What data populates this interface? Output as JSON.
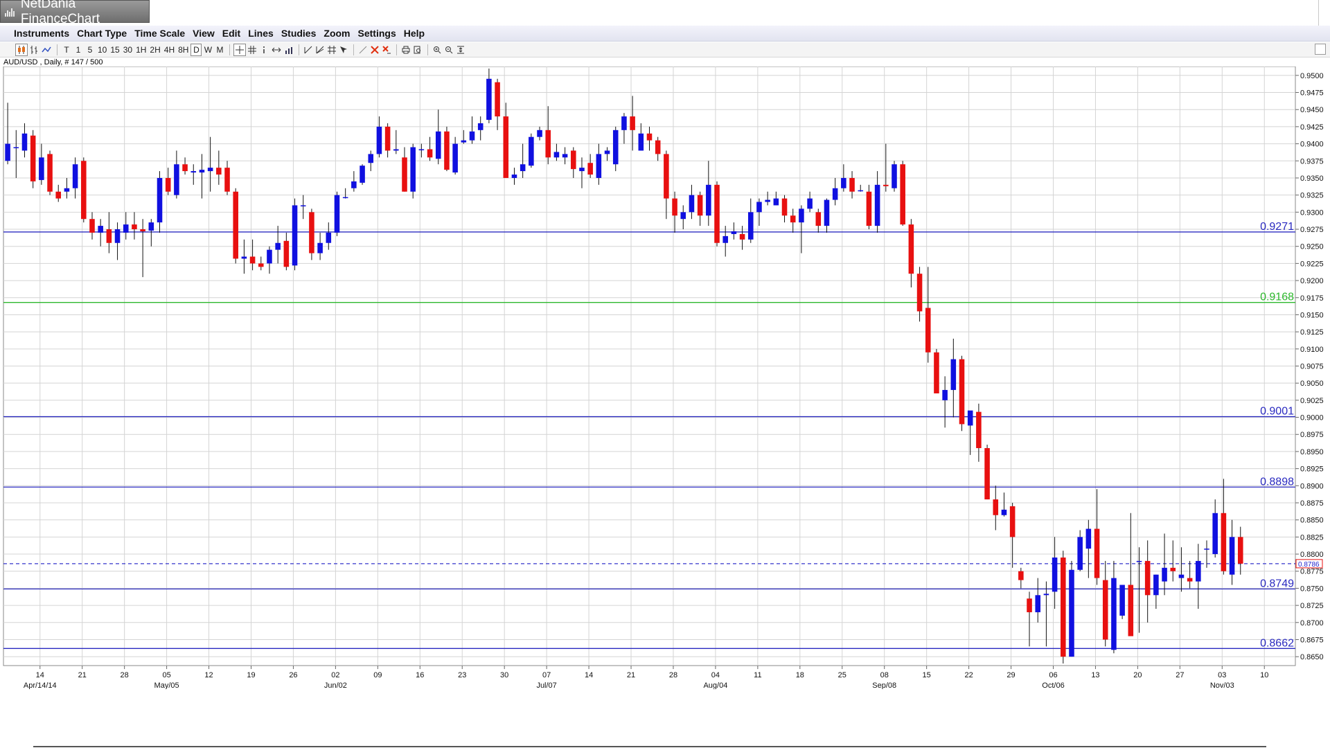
{
  "app": {
    "title": "NetDania FinanceChart",
    "icon": "chart-bars-icon"
  },
  "menu": [
    "Instruments",
    "Chart Type",
    "Time Scale",
    "View",
    "Edit",
    "Lines",
    "Studies",
    "Zoom",
    "Settings",
    "Help"
  ],
  "toolbar": {
    "chart_type_icons": [
      "candlestick-icon",
      "ohlc-bars-icon",
      "line-chart-icon"
    ],
    "timeframes": [
      "T",
      "1",
      "5",
      "10",
      "15",
      "30",
      "1H",
      "2H",
      "4H",
      "8H",
      "D",
      "W",
      "M"
    ],
    "active_timeframe": "D",
    "tool_icons": [
      "crosshair-icon",
      "grid-icon",
      "info-icon",
      "pan-icon",
      "volume-icon",
      "trendline-icon",
      "fan-icon",
      "fibonacci-icon",
      "cursor-arrow-icon",
      "draw-line-icon",
      "delete-icon",
      "delete-all-icon",
      "print-icon",
      "print-preview-icon",
      "zoom-in-icon",
      "zoom-out-icon",
      "fit-icon"
    ]
  },
  "instrument_info": "AUD/USD , Daily, # 147 / 500",
  "colors": {
    "up": "#1010e0",
    "down": "#e81010",
    "hline_blue": "#2a2ac0",
    "hline_green": "#2db82d",
    "grid": "#d4d4d4",
    "last_price": "#e81010"
  },
  "chart_data": {
    "type": "candlestick",
    "instrument": "AUD/USD",
    "ylim": [
      0.8637,
      0.9513
    ],
    "y_ticks": [
      "0.9500",
      "0.9475",
      "0.9450",
      "0.9425",
      "0.9400",
      "0.9375",
      "0.9350",
      "0.9325",
      "0.9300",
      "0.9275",
      "0.9250",
      "0.9225",
      "0.9200",
      "0.9175",
      "0.9150",
      "0.9125",
      "0.9100",
      "0.9075",
      "0.9050",
      "0.9025",
      "0.9000",
      "0.8975",
      "0.8950",
      "0.8925",
      "0.8900",
      "0.8875",
      "0.8850",
      "0.8825",
      "0.8800",
      "0.8775",
      "0.8750",
      "0.8725",
      "0.8700",
      "0.8675",
      "0.8650"
    ],
    "x_ticks_top": [
      "14",
      "21",
      "28",
      "05",
      "12",
      "19",
      "26",
      "02",
      "09",
      "16",
      "23",
      "30",
      "07",
      "14",
      "21",
      "28",
      "04",
      "11",
      "18",
      "25",
      "08",
      "15",
      "22",
      "29",
      "06",
      "13",
      "20",
      "27",
      "03",
      "10"
    ],
    "x_ticks_bottom": [
      "Apr/14/14",
      "May/05",
      "Jun/02",
      "Jul/07",
      "Aug/04",
      "Sep/08",
      "Oct/06",
      "Nov/03"
    ],
    "h_lines": [
      {
        "value": 0.9271,
        "label": "0.9271",
        "color": "blue"
      },
      {
        "value": 0.9168,
        "label": "0.9168",
        "color": "green"
      },
      {
        "value": 0.9001,
        "label": "0.9001",
        "color": "blue"
      },
      {
        "value": 0.8898,
        "label": "0.8898",
        "color": "blue"
      },
      {
        "value": 0.8749,
        "label": "0.8749",
        "color": "blue"
      },
      {
        "value": 0.8662,
        "label": "0.8662",
        "color": "blue"
      }
    ],
    "last_price": 0.8786,
    "last_price_label": "0.8786",
    "candles_ohlc": [
      [
        0.9375,
        0.946,
        0.937,
        0.94
      ],
      [
        0.9395,
        0.942,
        0.935,
        0.9395
      ],
      [
        0.939,
        0.943,
        0.938,
        0.9415
      ],
      [
        0.9412,
        0.942,
        0.9335,
        0.9345
      ],
      [
        0.9347,
        0.94,
        0.934,
        0.938
      ],
      [
        0.9385,
        0.939,
        0.9325,
        0.933
      ],
      [
        0.933,
        0.934,
        0.9315,
        0.932
      ],
      [
        0.933,
        0.935,
        0.932,
        0.9335
      ],
      [
        0.9335,
        0.938,
        0.932,
        0.937
      ],
      [
        0.9375,
        0.938,
        0.9285,
        0.929
      ],
      [
        0.929,
        0.93,
        0.926,
        0.927
      ],
      [
        0.927,
        0.929,
        0.925,
        0.928
      ],
      [
        0.9275,
        0.93,
        0.924,
        0.9255
      ],
      [
        0.9255,
        0.9285,
        0.923,
        0.9275
      ],
      [
        0.927,
        0.93,
        0.926,
        0.9282
      ],
      [
        0.9282,
        0.93,
        0.926,
        0.9275
      ],
      [
        0.9275,
        0.929,
        0.9205,
        0.9272
      ],
      [
        0.9273,
        0.929,
        0.925,
        0.9285
      ],
      [
        0.9285,
        0.936,
        0.927,
        0.935
      ],
      [
        0.935,
        0.9365,
        0.9325,
        0.933
      ],
      [
        0.9325,
        0.939,
        0.932,
        0.937
      ],
      [
        0.937,
        0.938,
        0.9355,
        0.936
      ],
      [
        0.9358,
        0.937,
        0.934,
        0.936
      ],
      [
        0.9358,
        0.9385,
        0.932,
        0.9362
      ],
      [
        0.936,
        0.941,
        0.933,
        0.9365
      ],
      [
        0.9365,
        0.939,
        0.934,
        0.9355
      ],
      [
        0.9365,
        0.9375,
        0.9325,
        0.933
      ],
      [
        0.933,
        0.9335,
        0.9225,
        0.9232
      ],
      [
        0.9232,
        0.926,
        0.921,
        0.9235
      ],
      [
        0.9235,
        0.926,
        0.9215,
        0.9225
      ],
      [
        0.9225,
        0.9235,
        0.9215,
        0.922
      ],
      [
        0.9225,
        0.925,
        0.921,
        0.9245
      ],
      [
        0.9245,
        0.928,
        0.9225,
        0.9255
      ],
      [
        0.9258,
        0.927,
        0.9215,
        0.922
      ],
      [
        0.9222,
        0.932,
        0.9215,
        0.931
      ],
      [
        0.931,
        0.9325,
        0.929,
        0.931
      ],
      [
        0.93,
        0.9305,
        0.923,
        0.924
      ],
      [
        0.924,
        0.927,
        0.923,
        0.9255
      ],
      [
        0.9255,
        0.9285,
        0.9245,
        0.927
      ],
      [
        0.927,
        0.933,
        0.9265,
        0.9325
      ],
      [
        0.9322,
        0.9335,
        0.932,
        0.9322
      ],
      [
        0.9335,
        0.936,
        0.933,
        0.9345
      ],
      [
        0.9343,
        0.937,
        0.934,
        0.9368
      ],
      [
        0.9372,
        0.939,
        0.936,
        0.9385
      ],
      [
        0.9385,
        0.944,
        0.938,
        0.9425
      ],
      [
        0.9425,
        0.943,
        0.938,
        0.939
      ],
      [
        0.939,
        0.942,
        0.9385,
        0.9392
      ],
      [
        0.938,
        0.9395,
        0.933,
        0.933
      ],
      [
        0.933,
        0.94,
        0.932,
        0.9395
      ],
      [
        0.9392,
        0.94,
        0.938,
        0.9392
      ],
      [
        0.9392,
        0.941,
        0.9375,
        0.938
      ],
      [
        0.9378,
        0.945,
        0.937,
        0.9418
      ],
      [
        0.9418,
        0.9425,
        0.936,
        0.9362
      ],
      [
        0.9358,
        0.941,
        0.9355,
        0.94
      ],
      [
        0.9402,
        0.942,
        0.94,
        0.9405
      ],
      [
        0.9405,
        0.944,
        0.94,
        0.9418
      ],
      [
        0.942,
        0.944,
        0.9405,
        0.943
      ],
      [
        0.9435,
        0.951,
        0.943,
        0.9495
      ],
      [
        0.949,
        0.9495,
        0.942,
        0.944
      ],
      [
        0.944,
        0.946,
        0.9355,
        0.935
      ],
      [
        0.935,
        0.9365,
        0.934,
        0.9355
      ],
      [
        0.936,
        0.94,
        0.935,
        0.937
      ],
      [
        0.9368,
        0.9415,
        0.9365,
        0.941
      ],
      [
        0.941,
        0.9425,
        0.9405,
        0.942
      ],
      [
        0.942,
        0.9455,
        0.937,
        0.938
      ],
      [
        0.938,
        0.94,
        0.9375,
        0.9388
      ],
      [
        0.938,
        0.9395,
        0.937,
        0.9385
      ],
      [
        0.939,
        0.9395,
        0.935,
        0.9363
      ],
      [
        0.936,
        0.938,
        0.9335,
        0.9365
      ],
      [
        0.9372,
        0.9385,
        0.935,
        0.9355
      ],
      [
        0.935,
        0.94,
        0.934,
        0.9385
      ],
      [
        0.9385,
        0.9395,
        0.9375,
        0.939
      ],
      [
        0.937,
        0.9425,
        0.936,
        0.942
      ],
      [
        0.942,
        0.9445,
        0.94,
        0.944
      ],
      [
        0.944,
        0.947,
        0.939,
        0.942
      ],
      [
        0.939,
        0.943,
        0.939,
        0.9415
      ],
      [
        0.9415,
        0.9425,
        0.939,
        0.9405
      ],
      [
        0.9405,
        0.941,
        0.9375,
        0.9385
      ],
      [
        0.9385,
        0.939,
        0.929,
        0.932
      ],
      [
        0.932,
        0.933,
        0.927,
        0.9295
      ],
      [
        0.929,
        0.931,
        0.9275,
        0.93
      ],
      [
        0.93,
        0.934,
        0.929,
        0.9325
      ],
      [
        0.9325,
        0.933,
        0.928,
        0.9295
      ],
      [
        0.9295,
        0.9375,
        0.928,
        0.934
      ],
      [
        0.934,
        0.9345,
        0.925,
        0.9255
      ],
      [
        0.9255,
        0.928,
        0.9235,
        0.9265
      ],
      [
        0.9268,
        0.9285,
        0.926,
        0.9272
      ],
      [
        0.9268,
        0.928,
        0.9245,
        0.926
      ],
      [
        0.926,
        0.932,
        0.9255,
        0.93
      ],
      [
        0.93,
        0.932,
        0.928,
        0.9315
      ],
      [
        0.9315,
        0.933,
        0.931,
        0.9318
      ],
      [
        0.931,
        0.933,
        0.931,
        0.932
      ],
      [
        0.932,
        0.9325,
        0.9285,
        0.9295
      ],
      [
        0.9295,
        0.9305,
        0.927,
        0.9285
      ],
      [
        0.9285,
        0.931,
        0.924,
        0.9305
      ],
      [
        0.9305,
        0.933,
        0.93,
        0.932
      ],
      [
        0.93,
        0.9305,
        0.927,
        0.928
      ],
      [
        0.928,
        0.932,
        0.927,
        0.9318
      ],
      [
        0.9318,
        0.935,
        0.931,
        0.9335
      ],
      [
        0.9335,
        0.937,
        0.933,
        0.935
      ],
      [
        0.935,
        0.936,
        0.932,
        0.933
      ],
      [
        0.9332,
        0.934,
        0.933,
        0.9332
      ],
      [
        0.933,
        0.934,
        0.9275,
        0.928
      ],
      [
        0.928,
        0.936,
        0.927,
        0.934
      ],
      [
        0.934,
        0.94,
        0.933,
        0.9338
      ],
      [
        0.9335,
        0.9375,
        0.933,
        0.937
      ],
      [
        0.937,
        0.9375,
        0.928,
        0.9282
      ],
      [
        0.9282,
        0.929,
        0.919,
        0.921
      ],
      [
        0.921,
        0.922,
        0.914,
        0.9155
      ],
      [
        0.916,
        0.922,
        0.908,
        0.9095
      ],
      [
        0.9095,
        0.91,
        0.9035,
        0.9035
      ],
      [
        0.9025,
        0.906,
        0.8985,
        0.904
      ],
      [
        0.904,
        0.9115,
        0.9,
        0.9085
      ],
      [
        0.9085,
        0.909,
        0.898,
        0.899
      ],
      [
        0.8988,
        0.9,
        0.8945,
        0.901
      ],
      [
        0.9008,
        0.902,
        0.8935,
        0.8955
      ],
      [
        0.8955,
        0.896,
        0.888,
        0.888
      ],
      [
        0.888,
        0.89,
        0.8835,
        0.8857
      ],
      [
        0.8857,
        0.889,
        0.8855,
        0.8865
      ],
      [
        0.887,
        0.8875,
        0.878,
        0.8825
      ],
      [
        0.8775,
        0.878,
        0.875,
        0.8762
      ],
      [
        0.8735,
        0.8745,
        0.8665,
        0.8715
      ],
      [
        0.8715,
        0.8765,
        0.87,
        0.874
      ],
      [
        0.874,
        0.876,
        0.8665,
        0.8742
      ],
      [
        0.8745,
        0.8825,
        0.872,
        0.8795
      ],
      [
        0.8795,
        0.8805,
        0.864,
        0.865
      ],
      [
        0.865,
        0.879,
        0.865,
        0.8777
      ],
      [
        0.8777,
        0.8835,
        0.8775,
        0.8825
      ],
      [
        0.8808,
        0.885,
        0.8765,
        0.8837
      ],
      [
        0.8837,
        0.8895,
        0.8755,
        0.8765
      ],
      [
        0.8762,
        0.879,
        0.8665,
        0.8675
      ],
      [
        0.866,
        0.879,
        0.8655,
        0.8765
      ],
      [
        0.871,
        0.8755,
        0.8705,
        0.8755
      ],
      [
        0.8755,
        0.886,
        0.869,
        0.868
      ],
      [
        0.879,
        0.881,
        0.8685,
        0.879
      ],
      [
        0.879,
        0.882,
        0.87,
        0.874
      ],
      [
        0.874,
        0.877,
        0.872,
        0.877
      ],
      [
        0.876,
        0.883,
        0.874,
        0.878
      ],
      [
        0.878,
        0.882,
        0.876,
        0.8775
      ],
      [
        0.8765,
        0.881,
        0.8745,
        0.877
      ],
      [
        0.8765,
        0.879,
        0.875,
        0.876
      ],
      [
        0.876,
        0.8815,
        0.872,
        0.879
      ],
      [
        0.8808,
        0.882,
        0.878,
        0.8808
      ],
      [
        0.88,
        0.888,
        0.8795,
        0.886
      ],
      [
        0.886,
        0.891,
        0.877,
        0.8775
      ],
      [
        0.877,
        0.885,
        0.8755,
        0.8825
      ],
      [
        0.8825,
        0.884,
        0.877,
        0.8786
      ]
    ]
  }
}
